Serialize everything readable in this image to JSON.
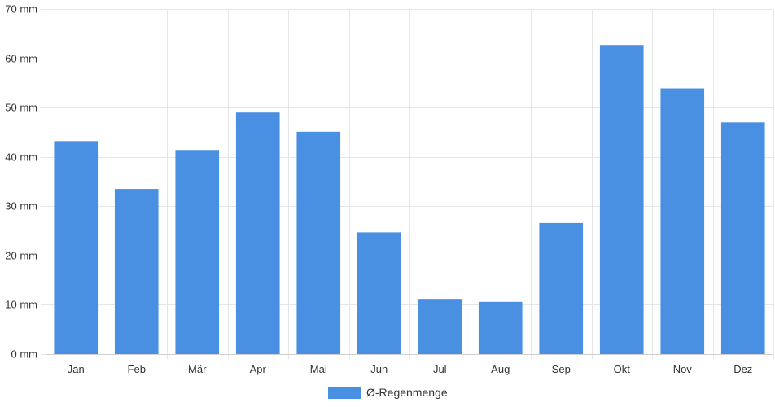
{
  "chart_data": {
    "type": "bar",
    "categories": [
      "Jan",
      "Feb",
      "Mär",
      "Apr",
      "Mai",
      "Jun",
      "Jul",
      "Aug",
      "Sep",
      "Okt",
      "Nov",
      "Dez"
    ],
    "series": [
      {
        "name": "Ø-Regenmenge",
        "values": [
          43.2,
          33.5,
          41.4,
          49.0,
          45.1,
          24.7,
          11.2,
          10.6,
          26.6,
          62.7,
          53.9,
          47.0
        ],
        "color": "#4a90e2"
      }
    ],
    "title": "",
    "xlabel": "",
    "ylabel": "",
    "y_unit": "mm",
    "ylim": [
      0,
      70
    ],
    "y_ticks": [
      "0 mm",
      "10 mm",
      "20 mm",
      "30 mm",
      "40 mm",
      "50 mm",
      "60 mm",
      "70 mm"
    ],
    "grid": true,
    "legend_position": "bottom"
  }
}
